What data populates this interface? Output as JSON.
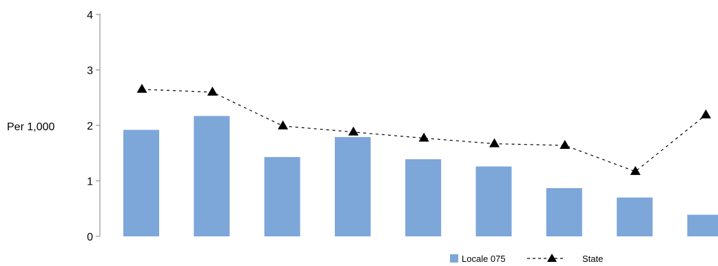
{
  "chart_data": {
    "type": "bar",
    "title": "",
    "xlabel": "",
    "ylabel": "Per 1,000",
    "ylim": [
      0,
      4
    ],
    "yticks": [
      "0",
      "1",
      "2",
      "3",
      "4"
    ],
    "grid": false,
    "legend_position": "bottom-right",
    "series": [
      {
        "name": "Locale 075",
        "kind": "bar",
        "color": "#7da6d9",
        "values": [
          1.92,
          2.17,
          1.43,
          1.79,
          1.39,
          1.26,
          0.87,
          0.7,
          0.39
        ]
      },
      {
        "name": "State",
        "kind": "line",
        "marker": "triangle",
        "line_style": "dashed",
        "color": "#000000",
        "values": [
          2.65,
          2.6,
          1.99,
          1.88,
          1.77,
          1.67,
          1.64,
          1.17,
          2.19
        ]
      }
    ]
  }
}
